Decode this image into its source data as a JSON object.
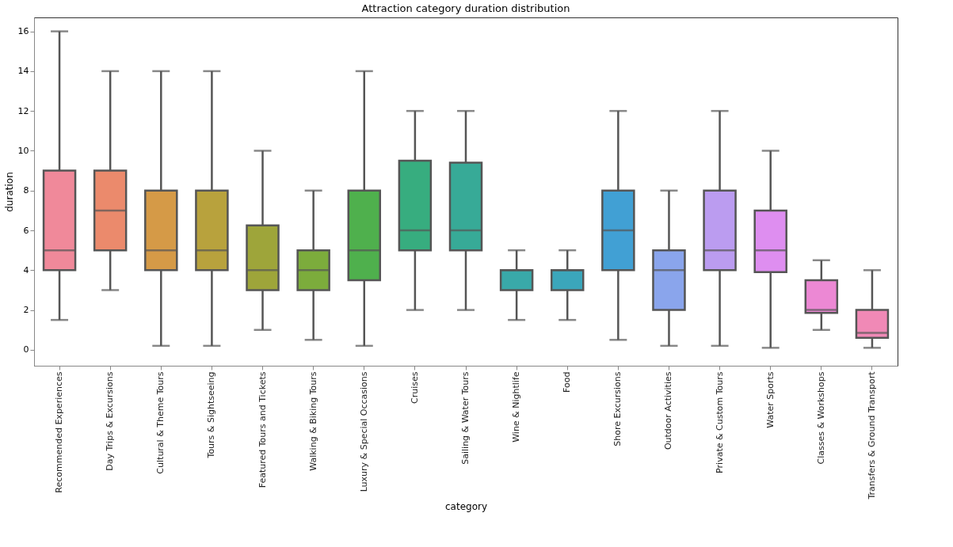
{
  "chart_data": {
    "type": "box",
    "title": "Attraction category duration distribution",
    "xlabel": "category",
    "ylabel": "duration",
    "categories": [
      "Recommended Experiences",
      "Day Trips & Excursions",
      "Cultural & Theme Tours",
      "Tours & Sightseeing",
      "Featured Tours and Tickets",
      "Walking & Biking Tours",
      "Luxury & Special Occasions",
      "Cruises",
      "Sailing & Water Tours",
      "Wine & Nightlife",
      "Food",
      "Shore Excursions",
      "Outdoor Activities",
      "Private & Custom Tours",
      "Water Sports",
      "Classes & Workshops",
      "Transfers & Ground Transport"
    ],
    "colors": [
      "#f0899a",
      "#eb8a6c",
      "#d59a47",
      "#b8a23d",
      "#9ea53a",
      "#7cac3c",
      "#4fb04d",
      "#37ad7f",
      "#37aa97",
      "#39a9a9",
      "#3ba6bb",
      "#41a0d4",
      "#8aa5ec",
      "#bb9cf0",
      "#de8ef0",
      "#ec88d4",
      "#f089b6"
    ],
    "boxes": [
      {
        "low": 1.5,
        "q1": 4,
        "median": 5,
        "q3": 9,
        "high": 16
      },
      {
        "low": 3,
        "q1": 5,
        "median": 7,
        "q3": 9,
        "high": 14
      },
      {
        "low": 0.2,
        "q1": 4,
        "median": 5,
        "q3": 8,
        "high": 14
      },
      {
        "low": 0.2,
        "q1": 4,
        "median": 5,
        "q3": 8,
        "high": 14
      },
      {
        "low": 1,
        "q1": 3,
        "median": 4,
        "q3": 6.25,
        "high": 10
      },
      {
        "low": 0.5,
        "q1": 3,
        "median": 4,
        "q3": 5,
        "high": 8
      },
      {
        "low": 0.2,
        "q1": 3.5,
        "median": 5,
        "q3": 8,
        "high": 14
      },
      {
        "low": 2,
        "q1": 5,
        "median": 6,
        "q3": 9.5,
        "high": 12
      },
      {
        "low": 2,
        "q1": 5,
        "median": 6,
        "q3": 9.4,
        "high": 12
      },
      {
        "low": 1.5,
        "q1": 3,
        "median": 4,
        "q3": 4,
        "high": 5
      },
      {
        "low": 1.5,
        "q1": 3,
        "median": 4,
        "q3": 4,
        "high": 5
      },
      {
        "low": 0.5,
        "q1": 4,
        "median": 6,
        "q3": 8,
        "high": 12
      },
      {
        "low": 0.2,
        "q1": 2,
        "median": 4,
        "q3": 5,
        "high": 8
      },
      {
        "low": 0.2,
        "q1": 4,
        "median": 5,
        "q3": 8,
        "high": 12
      },
      {
        "low": 0.1,
        "q1": 3.9,
        "median": 5,
        "q3": 7,
        "high": 10
      },
      {
        "low": 1,
        "q1": 1.85,
        "median": 2,
        "q3": 3.5,
        "high": 4.5
      },
      {
        "low": 0.1,
        "q1": 0.6,
        "median": 0.85,
        "q3": 2,
        "high": 4
      }
    ],
    "ylim": [
      -0.8,
      16.7
    ],
    "yticks": [
      0,
      2,
      4,
      6,
      8,
      10,
      12,
      14,
      16
    ],
    "grid": false,
    "legend": false
  }
}
